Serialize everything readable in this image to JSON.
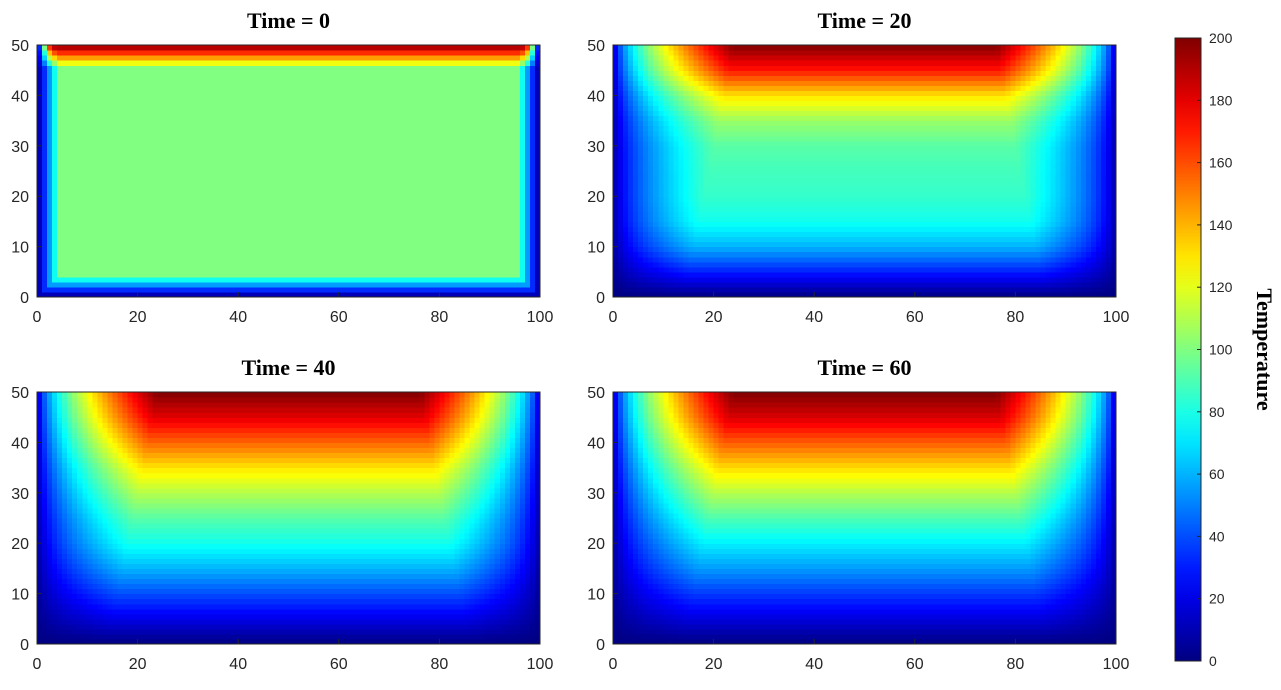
{
  "chart_data": {
    "type": "heatmap",
    "colormap": "jet",
    "colorbar": {
      "label": "Temperature",
      "range": [
        0,
        200
      ],
      "ticks": [
        0,
        20,
        40,
        60,
        80,
        100,
        120,
        140,
        160,
        180,
        200
      ]
    },
    "panels": [
      {
        "title": "Time = 0",
        "xlim": [
          0,
          100
        ],
        "ylim": [
          0,
          50
        ],
        "xticks": [
          0,
          20,
          40,
          60,
          80,
          100
        ],
        "yticks": [
          0,
          10,
          20,
          30,
          40,
          50
        ],
        "boundary": {
          "top": 200,
          "bottom": 0,
          "left": 0,
          "right": 0
        },
        "interior": 100
      },
      {
        "title": "Time = 20",
        "xlim": [
          0,
          100
        ],
        "ylim": [
          0,
          50
        ],
        "xticks": [
          0,
          20,
          40,
          60,
          80,
          100
        ],
        "yticks": [
          0,
          10,
          20,
          30,
          40,
          50
        ],
        "boundary": {
          "top": 200,
          "bottom": 0,
          "left": 0,
          "right": 0
        },
        "center_profile": [
          {
            "y": 0,
            "t": 0
          },
          {
            "y": 5,
            "t": 30
          },
          {
            "y": 10,
            "t": 60
          },
          {
            "y": 15,
            "t": 78
          },
          {
            "y": 20,
            "t": 85
          },
          {
            "y": 25,
            "t": 88
          },
          {
            "y": 30,
            "t": 92
          },
          {
            "y": 35,
            "t": 105
          },
          {
            "y": 40,
            "t": 130
          },
          {
            "y": 45,
            "t": 170
          },
          {
            "y": 50,
            "t": 200
          }
        ]
      },
      {
        "title": "Time = 40",
        "xlim": [
          0,
          100
        ],
        "ylim": [
          0,
          50
        ],
        "xticks": [
          0,
          20,
          40,
          60,
          80,
          100
        ],
        "yticks": [
          0,
          10,
          20,
          30,
          40,
          50
        ],
        "boundary": {
          "top": 200,
          "bottom": 0,
          "left": 0,
          "right": 0
        },
        "center_profile": [
          {
            "y": 0,
            "t": 0
          },
          {
            "y": 5,
            "t": 20
          },
          {
            "y": 10,
            "t": 40
          },
          {
            "y": 15,
            "t": 60
          },
          {
            "y": 20,
            "t": 78
          },
          {
            "y": 25,
            "t": 92
          },
          {
            "y": 30,
            "t": 110
          },
          {
            "y": 35,
            "t": 130
          },
          {
            "y": 40,
            "t": 155
          },
          {
            "y": 45,
            "t": 180
          },
          {
            "y": 50,
            "t": 200
          }
        ]
      },
      {
        "title": "Time = 60",
        "xlim": [
          0,
          100
        ],
        "ylim": [
          0,
          50
        ],
        "xticks": [
          0,
          20,
          40,
          60,
          80,
          100
        ],
        "yticks": [
          0,
          10,
          20,
          30,
          40,
          50
        ],
        "boundary": {
          "top": 200,
          "bottom": 0,
          "left": 0,
          "right": 0
        },
        "center_profile": [
          {
            "y": 0,
            "t": 0
          },
          {
            "y": 5,
            "t": 18
          },
          {
            "y": 10,
            "t": 36
          },
          {
            "y": 15,
            "t": 55
          },
          {
            "y": 20,
            "t": 72
          },
          {
            "y": 25,
            "t": 90
          },
          {
            "y": 30,
            "t": 110
          },
          {
            "y": 35,
            "t": 132
          },
          {
            "y": 40,
            "t": 157
          },
          {
            "y": 45,
            "t": 182
          },
          {
            "y": 50,
            "t": 200
          }
        ]
      }
    ]
  }
}
